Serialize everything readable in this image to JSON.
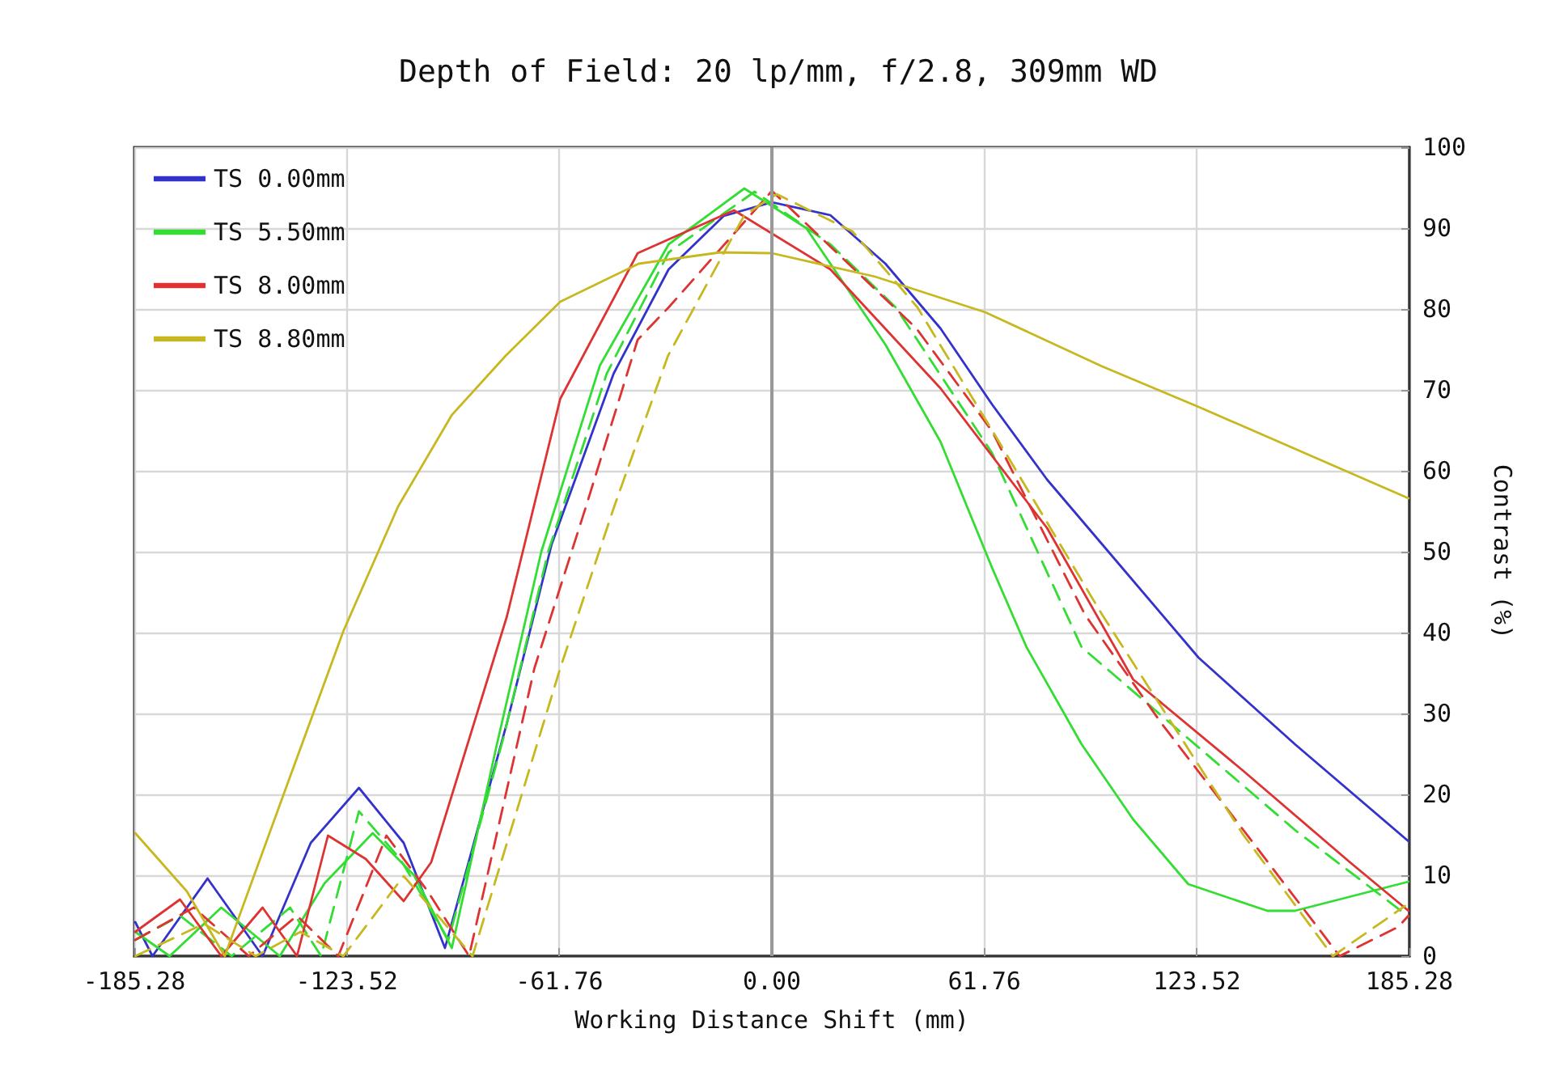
{
  "chart_data": {
    "type": "line",
    "title": "Depth of Field: 20 lp/mm, f/2.8, 309mm WD",
    "xlabel": "Working Distance Shift (mm)",
    "ylabel": "Contrast (%)",
    "xlim": [
      -185.28,
      185.28
    ],
    "xticks": [
      -185.28,
      -123.52,
      -61.76,
      {
        "value": 0,
        "label": "0.00"
      },
      61.76,
      123.52,
      185.28
    ],
    "ylim": [
      0,
      100
    ],
    "yticks": [
      0,
      10,
      20,
      30,
      40,
      50,
      60,
      70,
      80,
      90,
      100
    ],
    "grid": true,
    "legend": "top left",
    "marker": "none",
    "ref_lines": [
      {
        "axis": "x",
        "value": 0,
        "color": "#999999"
      }
    ],
    "series": [
      {
        "name": "TS 0.00mm",
        "color": "#3333cc",
        "line_style": "solid",
        "x": [
          -185,
          -180,
          -164,
          -148,
          -134,
          -120,
          -107,
          -95,
          -77,
          -64,
          -46,
          -30,
          -14,
          0,
          17,
          33,
          49,
          64,
          80,
          96,
          124,
          152,
          185
        ],
        "values": [
          4.2,
          0,
          9.6,
          0,
          14,
          20.8,
          14,
          1,
          28.8,
          50.9,
          72,
          84.9,
          91.5,
          93.2,
          91.6,
          85.6,
          77.6,
          68.2,
          58.9,
          50.9,
          36.9,
          26.2,
          14.2
        ]
      },
      {
        "name": "TS 5.50mm",
        "color": "#33dd33",
        "line_style": "solid",
        "x": [
          -185,
          -175,
          -160,
          -143,
          -130,
          -116,
          -104,
          -93,
          -80,
          -67,
          -50,
          -30,
          -8,
          10,
          17,
          33,
          49,
          64,
          74,
          90,
          105,
          121,
          144,
          152,
          185
        ],
        "values": [
          3,
          0,
          6,
          0,
          9,
          15.2,
          10,
          1,
          26,
          50,
          73,
          88,
          94.9,
          90,
          85.6,
          75.6,
          63.6,
          48,
          38.2,
          26.2,
          16.9,
          8.9,
          5.6,
          5.6,
          9.2
        ]
      },
      {
        "color": "#33dd33",
        "line_style": "dashed",
        "x": [
          -185,
          -172,
          -157,
          -140,
          -131,
          -120,
          -108,
          -94,
          -78,
          -65,
          -48,
          -30,
          -5,
          17,
          36,
          64,
          90,
          121,
          152,
          185
        ],
        "values": [
          2,
          5,
          0,
          6,
          0,
          17.9,
          12,
          2,
          27,
          50,
          72,
          87,
          94.5,
          88,
          80.2,
          62.2,
          38.2,
          26.9,
          15.6,
          4.9
        ]
      },
      {
        "name": "TS 8.00mm",
        "color": "#dd3333",
        "line_style": "solid",
        "x": [
          -185,
          -172,
          -160,
          -148,
          -138,
          -129,
          -118,
          -107,
          -99,
          -77,
          -61.5,
          -39,
          -11,
          17,
          49,
          80,
          105,
          137,
          168,
          185
        ],
        "values": [
          3,
          7,
          0,
          6,
          0,
          14.9,
          12,
          6.8,
          11.6,
          42,
          68.9,
          86.9,
          92.2,
          84.9,
          70.2,
          52.9,
          34.2,
          22.9,
          11.6,
          5.6
        ]
      },
      {
        "color": "#dd3333",
        "line_style": "dashed",
        "x": [
          -185,
          -168,
          -152,
          -138,
          -126,
          -112,
          -100,
          -88,
          -69,
          -54,
          -39,
          -30,
          0,
          42,
          64,
          91,
          113,
          137,
          165,
          182,
          185
        ],
        "values": [
          2,
          6,
          0,
          5,
          0,
          14.9,
          8,
          0,
          35.6,
          55.6,
          76.2,
          80.2,
          94.6,
          77.6,
          64.9,
          42.2,
          28.9,
          15.6,
          0,
          3.6,
          5
        ]
      },
      {
        "name": "TS 8.80mm",
        "color": "#c8b820",
        "line_style": "solid",
        "x": [
          -185,
          -170,
          -159,
          -140,
          -124.5,
          -108.6,
          -93,
          -77.4,
          -61.5,
          -38.7,
          -15,
          0,
          30,
          62,
          96,
          124,
          185
        ],
        "values": [
          15.2,
          8,
          0,
          22.2,
          40.2,
          55.6,
          66.9,
          74.2,
          80.9,
          85.6,
          87,
          86.9,
          84,
          79.6,
          72.9,
          67.9,
          56.6
        ]
      },
      {
        "color": "#c8b820",
        "line_style": "dashed",
        "x": [
          -185,
          -165,
          -150,
          -137,
          -124.5,
          -107,
          -87,
          -61.5,
          -45.8,
          -30.2,
          -8,
          1.4,
          23.4,
          42.3,
          64,
          96,
          137,
          163,
          184
        ],
        "values": [
          0,
          4,
          0,
          3,
          0,
          9.9,
          0,
          35.6,
          55.6,
          74.2,
          91.6,
          94.2,
          89.6,
          80.2,
          65,
          42.2,
          15,
          0,
          6.2
        ]
      }
    ]
  }
}
